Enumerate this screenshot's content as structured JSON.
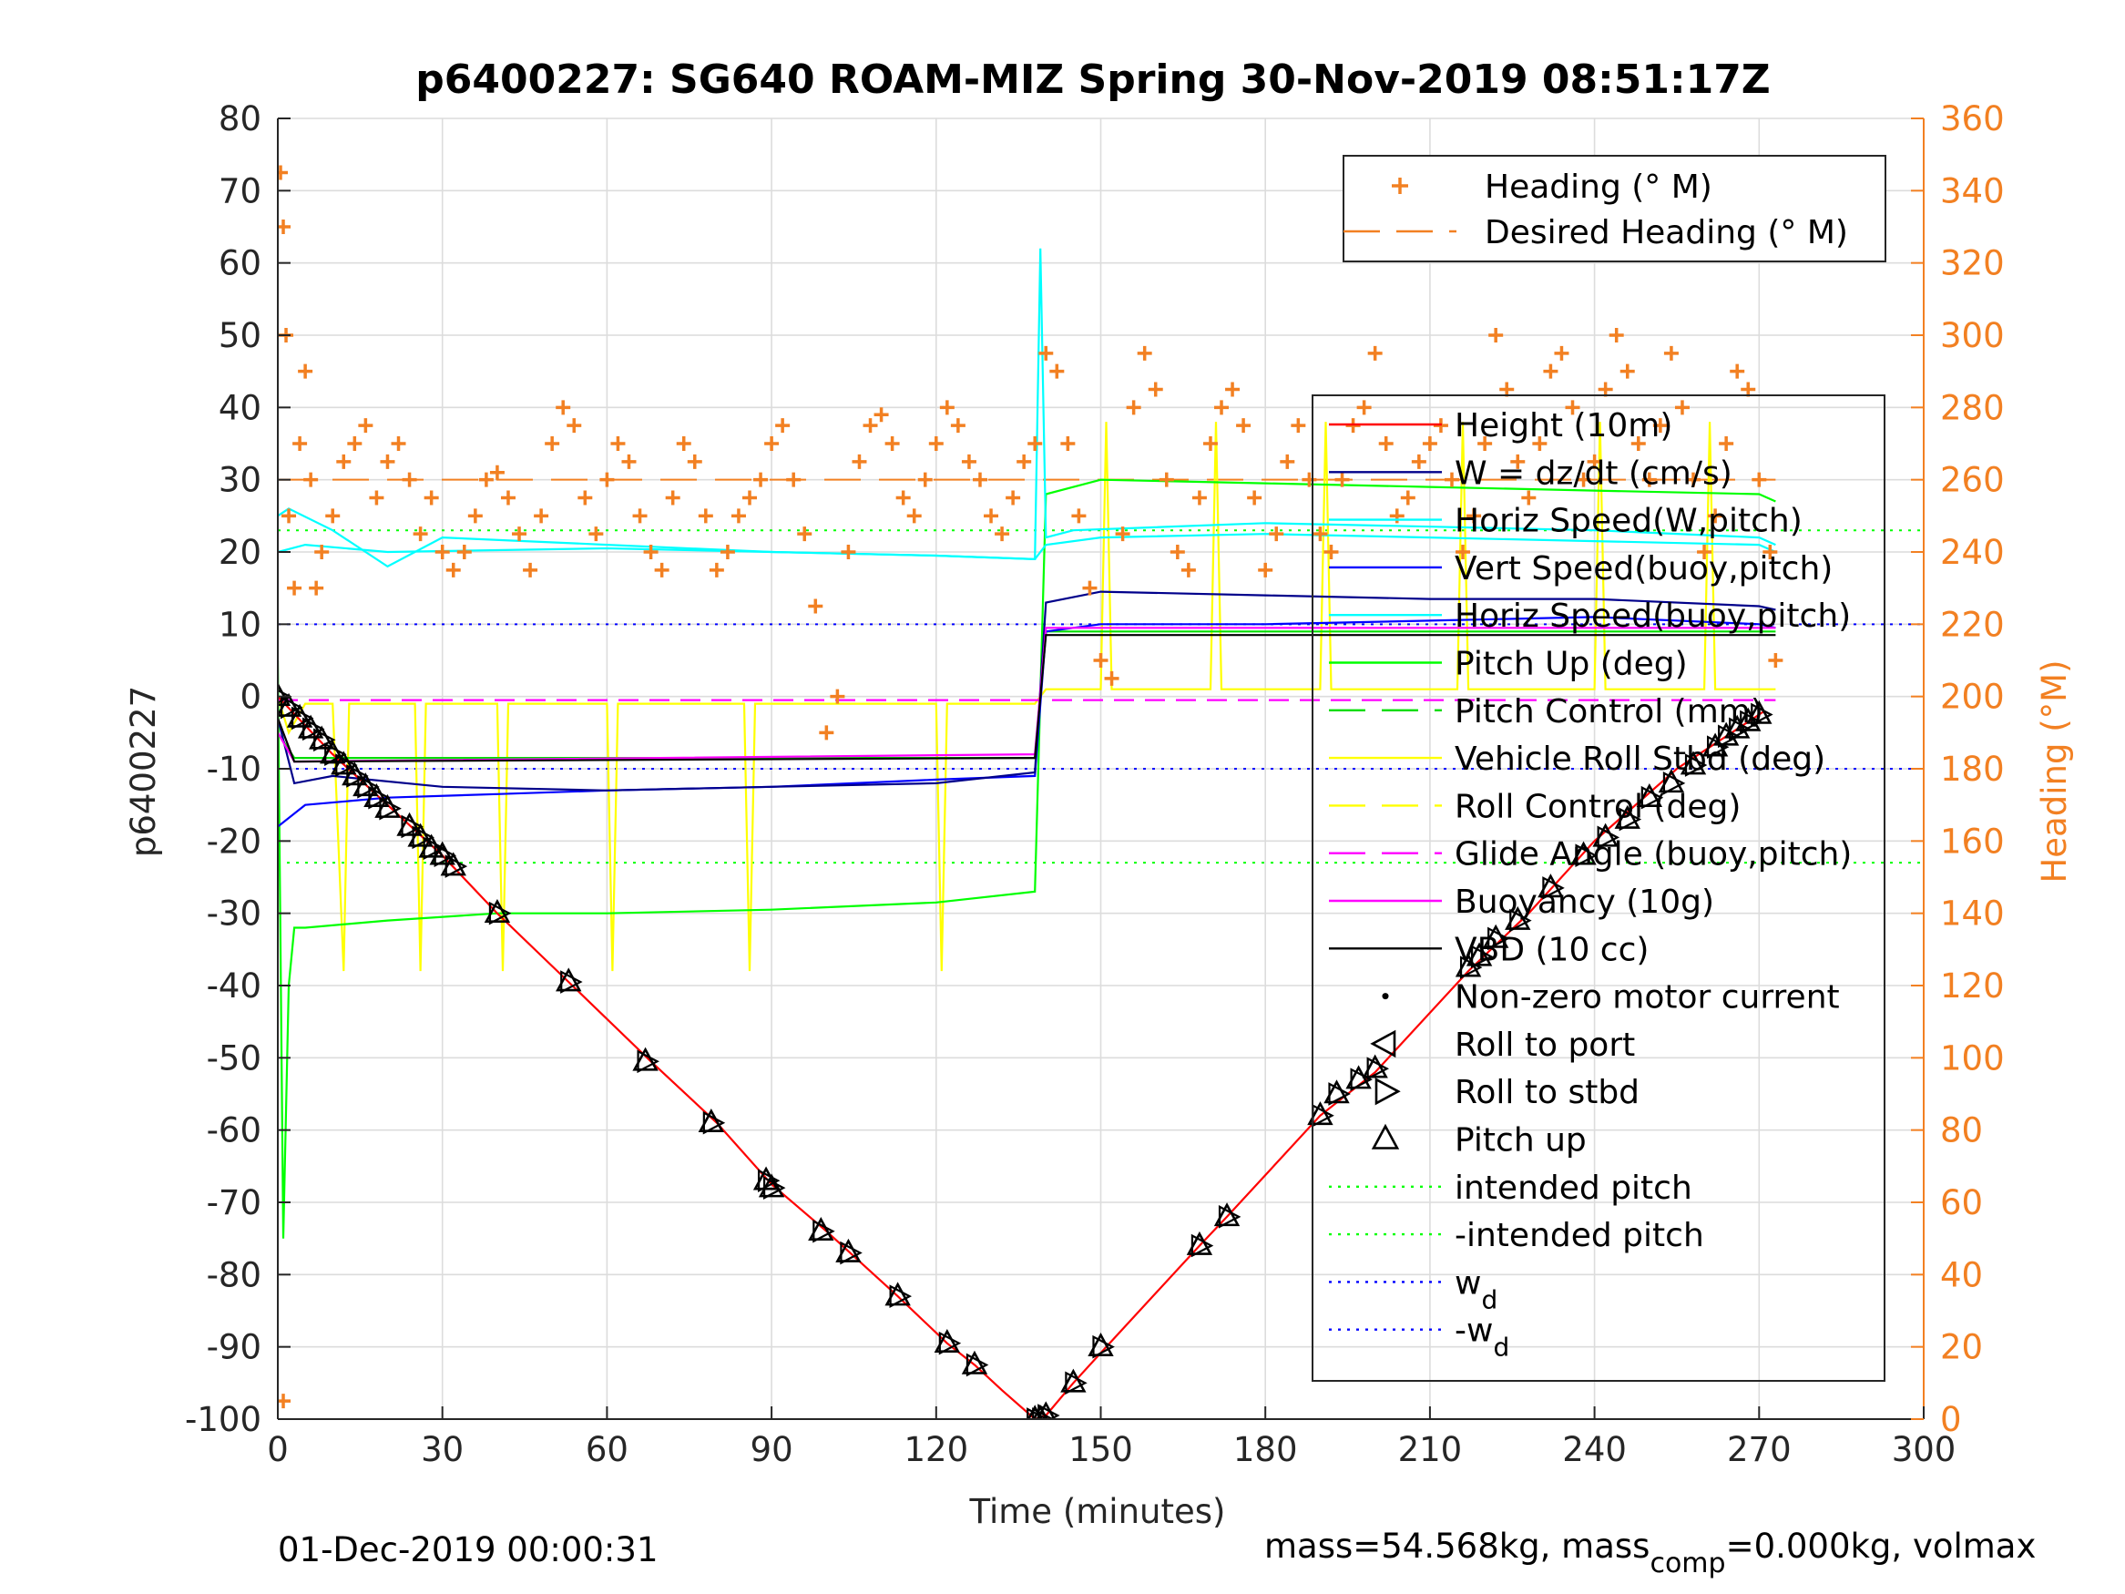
{
  "chart_data": {
    "type": "line",
    "title": "p6400227: SG640 ROAM-MIZ Spring 30-Nov-2019 08:51:17Z",
    "xlabel": "Time (minutes)",
    "ylabel": "p6400227",
    "ylabel_right": "Heading (°M)",
    "xlim": [
      0,
      300
    ],
    "ylim": [
      -100,
      80
    ],
    "ylim_right": [
      0,
      360
    ],
    "x_ticks": [
      0,
      30,
      60,
      90,
      120,
      150,
      180,
      210,
      240,
      270,
      300
    ],
    "y_ticks": [
      80,
      70,
      60,
      50,
      40,
      30,
      20,
      10,
      0,
      -10,
      -20,
      -30,
      -40,
      -50,
      -60,
      -70,
      -80,
      -90,
      -100
    ],
    "y_ticks_right": [
      360,
      340,
      320,
      300,
      280,
      260,
      240,
      220,
      200,
      180,
      160,
      140,
      120,
      100,
      80,
      60,
      40,
      20,
      0
    ],
    "grid": true,
    "legend_top": [
      {
        "name": "Heading (° M)",
        "color": "#f28022",
        "style": "plus"
      },
      {
        "name": "Desired Heading (° M)",
        "color": "#f28022",
        "style": "dash"
      }
    ],
    "legend_main": [
      {
        "name": "Height (10m)",
        "color": "#ff0000",
        "style": "solid"
      },
      {
        "name": "W = dz/dt (cm/s)",
        "color": "#00008b",
        "style": "solid"
      },
      {
        "name": "Horiz Speed(W,pitch)",
        "color": "#00ffff",
        "style": "solid"
      },
      {
        "name": "Vert Speed(buoy,pitch)",
        "color": "#0000ff",
        "style": "solid"
      },
      {
        "name": "Horiz Speed(buoy,pitch)",
        "color": "#00ffff",
        "style": "solid"
      },
      {
        "name": "Pitch Up (deg)",
        "color": "#00ff00",
        "style": "solid"
      },
      {
        "name": "Pitch Control (mm)",
        "color": "#00dd00",
        "style": "dash"
      },
      {
        "name": "Vehicle Roll Stbd (deg)",
        "color": "#ffff00",
        "style": "solid"
      },
      {
        "name": "Roll Control (deg)",
        "color": "#ffff00",
        "style": "dash"
      },
      {
        "name": "Glide Angle (buoy,pitch)",
        "color": "#ff00ff",
        "style": "dash"
      },
      {
        "name": "Buoyancy (10g)",
        "color": "#ff00ff",
        "style": "solid"
      },
      {
        "name": "VBD (10 cc)",
        "color": "#000000",
        "style": "solid"
      },
      {
        "name": "Non-zero motor current",
        "color": "#000000",
        "style": "dot"
      },
      {
        "name": "Roll to port",
        "color": "#000000",
        "style": "tri-left"
      },
      {
        "name": "Roll to stbd",
        "color": "#000000",
        "style": "tri-right"
      },
      {
        "name": "Pitch up",
        "color": "#000000",
        "style": "tri-up"
      },
      {
        "name": "intended pitch",
        "color": "#00ff00",
        "style": "dotted"
      },
      {
        "name": "-intended pitch",
        "color": "#00ff00",
        "style": "dotted"
      },
      {
        "name": "w",
        "sub": "d",
        "color": "#0000ff",
        "style": "dotted"
      },
      {
        "name": "-w",
        "sub": "d",
        "color": "#0000ff",
        "style": "dotted"
      }
    ],
    "reference_lines": {
      "intended_pitch": 23,
      "neg_intended_pitch": -23,
      "w_d": 10,
      "neg_w_d": -10,
      "desired_heading_deg": 260
    },
    "series": [
      {
        "name": "Height (10m)",
        "color": "#ff0000",
        "x": [
          0,
          10,
          20,
          30,
          40,
          53,
          68,
          80,
          90,
          100,
          113,
          122,
          127,
          132,
          138,
          140,
          145,
          151,
          168,
          173,
          190,
          200,
          217,
          228,
          240,
          255,
          270,
          271
        ],
        "y": [
          0,
          -8,
          -15,
          -22,
          -30,
          -39.5,
          -50.5,
          -59,
          -67.5,
          -74,
          -83,
          -89.5,
          -92.5,
          -96,
          -100,
          -99.5,
          -95,
          -90,
          -76,
          -72,
          -58,
          -52,
          -38,
          -30,
          -20,
          -10,
          -2.5,
          -2
        ]
      },
      {
        "name": "W = dz/dt (cm/s)",
        "color": "#00008b",
        "x": [
          0,
          3,
          10,
          30,
          60,
          90,
          120,
          138,
          140,
          150,
          180,
          210,
          240,
          270,
          273
        ],
        "y": [
          -3,
          -12,
          -11,
          -12.5,
          -13,
          -12.5,
          -12,
          -10.5,
          13,
          14.5,
          14,
          13.5,
          13.5,
          12.5,
          12
        ]
      },
      {
        "name": "Horiz Speed(W,pitch)",
        "color": "#00ffff",
        "x": [
          0,
          2,
          10,
          20,
          30,
          60,
          90,
          120,
          138,
          139,
          140,
          145,
          180,
          210,
          240,
          270,
          273
        ],
        "y": [
          25,
          26,
          23,
          18,
          22,
          21,
          20,
          19.5,
          19,
          62,
          22,
          23,
          24,
          23.5,
          23,
          22,
          21
        ]
      },
      {
        "name": "Vert Speed(buoy,pitch)",
        "color": "#0000ff",
        "x": [
          0,
          5,
          20,
          40,
          60,
          90,
          120,
          138,
          140,
          150,
          180,
          210,
          240,
          270,
          273
        ],
        "y": [
          -18,
          -15,
          -14,
          -13.5,
          -13,
          -12.5,
          -11.5,
          -11,
          9,
          10,
          10,
          10.5,
          11,
          10,
          9.5
        ]
      },
      {
        "name": "Horiz Speed(buoy,pitch)",
        "color": "#00ffff",
        "x": [
          0,
          5,
          20,
          60,
          90,
          120,
          138,
          140,
          150,
          180,
          210,
          240,
          270,
          273
        ],
        "y": [
          20,
          21,
          20,
          20.5,
          20,
          19.5,
          19,
          21,
          22,
          22.5,
          22,
          21.5,
          21,
          20
        ]
      },
      {
        "name": "Pitch Up (deg)",
        "color": "#00ff00",
        "x": [
          0,
          1,
          2,
          3,
          5,
          20,
          40,
          60,
          90,
          120,
          138,
          140,
          150,
          180,
          210,
          240,
          270,
          273
        ],
        "y": [
          5,
          -75,
          -40,
          -32,
          -32,
          -31,
          -30,
          -30,
          -29.5,
          -28.5,
          -27,
          28,
          30,
          29.5,
          29,
          28.5,
          28,
          27
        ]
      },
      {
        "name": "Pitch Control (mm)",
        "color": "#00dd00",
        "x": [
          0,
          3,
          138,
          140,
          273
        ],
        "y": [
          -5,
          -8.5,
          -8.5,
          9,
          9
        ]
      },
      {
        "name": "Vehicle Roll Stbd (deg)",
        "color": "#ffff00",
        "x": [
          0,
          2,
          5,
          10,
          12,
          13,
          25,
          26,
          27,
          40,
          41,
          42,
          60,
          61,
          62,
          85,
          86,
          87,
          120,
          121,
          122,
          138,
          140,
          150,
          151,
          152,
          170,
          171,
          172,
          190,
          191,
          192,
          215,
          216,
          217,
          240,
          241,
          242,
          260,
          261,
          262,
          273
        ],
        "y": [
          0,
          -5,
          -1,
          -1,
          -38,
          -1,
          -1,
          -38,
          -1,
          -1,
          -38,
          -1,
          -1,
          -38,
          -1,
          -1,
          -38,
          -1,
          -1,
          -38,
          -1,
          -1,
          1,
          1,
          38,
          1,
          1,
          38,
          1,
          1,
          38,
          1,
          1,
          38,
          1,
          1,
          38,
          1,
          1,
          38,
          1,
          1
        ]
      },
      {
        "name": "Glide Angle (buoy,pitch)",
        "color": "#ff00ff",
        "x": [
          0,
          273
        ],
        "y": [
          -0.5,
          -0.5
        ]
      },
      {
        "name": "Buoyancy (10g)",
        "color": "#ff00ff",
        "x": [
          0,
          3,
          138,
          140,
          273
        ],
        "y": [
          -5,
          -9,
          -8,
          9.5,
          9.5
        ]
      },
      {
        "name": "VBD (10 cc)",
        "color": "#000000",
        "x": [
          0,
          3,
          138,
          140,
          273
        ],
        "y": [
          -3,
          -9,
          -8.5,
          8.5,
          8.5
        ]
      }
    ],
    "heading_points": {
      "x": [
        0.5,
        1,
        1.5,
        2,
        3,
        4,
        5,
        6,
        7,
        8,
        10,
        12,
        14,
        16,
        18,
        20,
        22,
        24,
        26,
        28,
        30,
        32,
        34,
        36,
        38,
        40,
        42,
        44,
        46,
        48,
        50,
        52,
        54,
        56,
        58,
        60,
        62,
        64,
        66,
        68,
        70,
        72,
        74,
        76,
        78,
        80,
        82,
        84,
        86,
        88,
        90,
        92,
        94,
        96,
        98,
        100,
        102,
        104,
        106,
        108,
        110,
        112,
        114,
        116,
        118,
        120,
        122,
        124,
        126,
        128,
        130,
        132,
        134,
        136,
        138,
        140,
        142,
        144,
        146,
        148,
        150,
        152,
        154,
        156,
        158,
        160,
        162,
        164,
        166,
        168,
        170,
        172,
        174,
        176,
        178,
        180,
        182,
        184,
        186,
        188,
        190,
        192,
        194,
        196,
        198,
        200,
        202,
        204,
        206,
        208,
        210,
        212,
        214,
        216,
        218,
        220,
        222,
        224,
        226,
        228,
        230,
        232,
        234,
        236,
        238,
        240,
        242,
        244,
        246,
        248,
        250,
        252,
        254,
        256,
        258,
        260,
        262,
        264,
        266,
        268,
        270,
        272,
        273,
        1
      ],
      "y": [
        345,
        330,
        300,
        250,
        230,
        270,
        290,
        260,
        230,
        240,
        250,
        265,
        270,
        275,
        255,
        265,
        270,
        260,
        245,
        255,
        240,
        235,
        240,
        250,
        260,
        262,
        255,
        245,
        235,
        250,
        270,
        280,
        275,
        255,
        245,
        260,
        270,
        265,
        250,
        240,
        235,
        255,
        270,
        265,
        250,
        235,
        240,
        250,
        255,
        260,
        270,
        275,
        260,
        245,
        225,
        190,
        200,
        240,
        265,
        275,
        278,
        270,
        255,
        250,
        260,
        270,
        280,
        275,
        265,
        260,
        250,
        245,
        255,
        265,
        270,
        295,
        290,
        270,
        250,
        230,
        210,
        205,
        245,
        280,
        295,
        285,
        260,
        240,
        235,
        255,
        270,
        280,
        285,
        275,
        255,
        235,
        245,
        265,
        275,
        260,
        245,
        240,
        260,
        275,
        280,
        295,
        270,
        250,
        255,
        265,
        270,
        275,
        260,
        240,
        250,
        270,
        300,
        285,
        265,
        255,
        270,
        290,
        295,
        280,
        260,
        265,
        285,
        300,
        290,
        270,
        260,
        275,
        295,
        280,
        260,
        240,
        250,
        270,
        290,
        285,
        260,
        240,
        210,
        5
      ]
    },
    "markers": {
      "pitch_up": {
        "x": [
          0,
          2,
          4,
          6,
          8,
          10,
          12,
          14,
          16,
          18,
          20,
          24,
          26,
          28,
          30,
          32,
          40,
          53,
          67,
          79,
          89,
          90,
          99,
          104,
          113,
          122,
          127,
          138,
          139,
          140,
          145,
          150,
          168,
          173,
          190,
          193,
          197,
          200,
          217,
          219,
          222,
          226,
          232,
          238,
          242,
          246,
          250,
          254,
          258,
          262,
          264,
          266,
          268,
          270
        ],
        "y": [
          0,
          -1.5,
          -3,
          -4.5,
          -6,
          -8,
          -9.5,
          -11,
          -12.5,
          -14,
          -15.5,
          -18,
          -19.5,
          -21,
          -22,
          -23.5,
          -30,
          -39.5,
          -50.5,
          -59,
          -67,
          -68,
          -74,
          -77,
          -83,
          -89.5,
          -92.5,
          -100,
          -100,
          -99.5,
          -95,
          -90,
          -76,
          -72,
          -58,
          -55,
          -53,
          -51.5,
          -37.5,
          -36,
          -33.5,
          -31,
          -26.5,
          -22,
          -19.5,
          -17,
          -14,
          -12,
          -9.5,
          -7,
          -5.5,
          -4.5,
          -3.5,
          -2.5
        ]
      }
    },
    "footer_left": "01-Dec-2019 00:00:31",
    "footer_right_parts": [
      "mass=54.568kg, mass",
      "comp",
      "=0.000kg, volmax"
    ]
  }
}
